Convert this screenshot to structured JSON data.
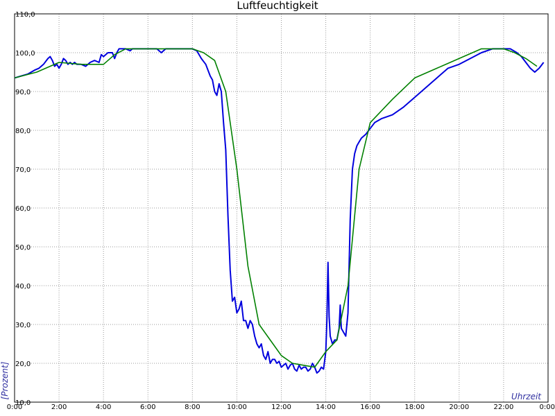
{
  "chart_data": {
    "type": "line",
    "title": "Luftfeuchtigkeit",
    "xlabel": "Uhrzeit",
    "ylabel": "[Prozent]",
    "x_unit": "hours",
    "xlim": [
      0,
      24
    ],
    "ylim": [
      10,
      110
    ],
    "x_ticks": [
      {
        "value": 0,
        "label": "0:00"
      },
      {
        "value": 2,
        "label": "2:00"
      },
      {
        "value": 4,
        "label": "4:00"
      },
      {
        "value": 6,
        "label": "6:00"
      },
      {
        "value": 8,
        "label": "8:00"
      },
      {
        "value": 10,
        "label": "10:00"
      },
      {
        "value": 12,
        "label": "12:00"
      },
      {
        "value": 14,
        "label": "14:00"
      },
      {
        "value": 16,
        "label": "16:00"
      },
      {
        "value": 18,
        "label": "18:00"
      },
      {
        "value": 20,
        "label": "20:00"
      },
      {
        "value": 22,
        "label": "22:00"
      },
      {
        "value": 24,
        "label": "0:00"
      }
    ],
    "y_ticks": [
      {
        "value": 10,
        "label": "10,0"
      },
      {
        "value": 20,
        "label": "20,0"
      },
      {
        "value": 30,
        "label": "30,0"
      },
      {
        "value": 40,
        "label": "40,0"
      },
      {
        "value": 50,
        "label": "50,0"
      },
      {
        "value": 60,
        "label": "60,0"
      },
      {
        "value": 70,
        "label": "70,0"
      },
      {
        "value": 80,
        "label": "80,0"
      },
      {
        "value": 90,
        "label": "90,0"
      },
      {
        "value": 100,
        "label": "100,0"
      },
      {
        "value": 110,
        "label": "110,0"
      }
    ],
    "grid": true,
    "colors": {
      "series_1": "#0000dd",
      "series_2": "#008000",
      "grid": "#999999"
    },
    "series": [
      {
        "x": [
          0.0,
          0.3,
          0.6,
          0.9,
          1.1,
          1.3,
          1.5,
          1.6,
          1.7,
          1.8,
          1.9,
          2.0,
          2.1,
          2.2,
          2.3,
          2.4,
          2.5,
          2.6,
          2.7,
          2.8,
          3.0,
          3.2,
          3.4,
          3.6,
          3.8,
          3.9,
          4.0,
          4.2,
          4.4,
          4.5,
          4.6,
          4.7,
          4.8,
          5.0,
          5.2,
          5.3,
          5.4,
          5.6,
          5.8,
          6.0,
          6.2,
          6.4,
          6.6,
          6.8,
          7.0,
          7.5,
          8.0,
          8.2,
          8.4,
          8.6,
          8.8,
          8.9,
          9.0,
          9.1,
          9.2,
          9.3,
          9.4,
          9.5,
          9.6,
          9.7,
          9.8,
          9.9,
          10.0,
          10.1,
          10.2,
          10.3,
          10.4,
          10.5,
          10.6,
          10.7,
          10.8,
          10.9,
          11.0,
          11.1,
          11.2,
          11.3,
          11.4,
          11.5,
          11.6,
          11.7,
          11.8,
          11.9,
          12.0,
          12.1,
          12.2,
          12.3,
          12.4,
          12.5,
          12.6,
          12.7,
          12.8,
          12.9,
          13.0,
          13.1,
          13.2,
          13.3,
          13.4,
          13.5,
          13.6,
          13.7,
          13.8,
          13.9,
          14.0,
          14.05,
          14.1,
          14.15,
          14.2,
          14.3,
          14.4,
          14.5,
          14.6,
          14.65,
          14.7,
          14.8,
          14.9,
          15.0,
          15.1,
          15.2,
          15.3,
          15.4,
          15.5,
          15.6,
          15.8,
          16.0,
          16.2,
          16.5,
          17.0,
          17.5,
          18.0,
          18.5,
          19.0,
          19.5,
          20.0,
          20.5,
          21.0,
          21.5,
          22.0,
          22.3,
          22.6,
          22.8,
          23.0,
          23.2,
          23.4,
          23.6,
          23.8
        ],
        "values": [
          93.5,
          94.0,
          94.5,
          95.5,
          96.0,
          97.0,
          98.5,
          99.0,
          98.0,
          96.5,
          97.0,
          96.0,
          97.0,
          98.5,
          98.0,
          97.0,
          97.5,
          97.0,
          97.5,
          97.0,
          97.0,
          96.5,
          97.5,
          98.0,
          97.5,
          99.5,
          99.0,
          100.0,
          100.0,
          98.5,
          100.0,
          101.0,
          101.0,
          101.0,
          100.5,
          101.0,
          101.0,
          101.0,
          101.0,
          101.0,
          101.0,
          101.0,
          100.0,
          101.0,
          101.0,
          101.0,
          101.0,
          100.5,
          98.5,
          97.0,
          94.0,
          93.0,
          90.0,
          89.0,
          92.0,
          90.0,
          82.0,
          75.0,
          58.0,
          44.0,
          36.0,
          37.0,
          33.0,
          34.0,
          36.0,
          31.0,
          31.0,
          29.0,
          31.0,
          30.0,
          27.0,
          25.0,
          24.0,
          25.0,
          22.0,
          21.0,
          23.0,
          20.0,
          21.0,
          21.0,
          20.0,
          20.5,
          19.0,
          19.5,
          20.0,
          18.5,
          19.5,
          20.0,
          18.5,
          18.0,
          19.5,
          18.5,
          19.0,
          19.0,
          18.0,
          18.5,
          20.0,
          19.0,
          17.5,
          18.0,
          19.0,
          18.5,
          23.0,
          31.0,
          46.0,
          32.0,
          27.0,
          25.0,
          26.0,
          26.0,
          29.0,
          35.0,
          29.0,
          28.0,
          27.0,
          33.0,
          57.0,
          70.0,
          74.0,
          76.0,
          77.0,
          78.0,
          79.0,
          80.5,
          82.0,
          83.0,
          84.0,
          86.0,
          88.5,
          91.0,
          93.5,
          96.0,
          97.0,
          98.5,
          100.0,
          101.0,
          101.0,
          101.0,
          100.0,
          99.0,
          97.5,
          96.0,
          95.0,
          96.0,
          97.5
        ]
      },
      {
        "x": [
          0.0,
          1.0,
          2.0,
          3.0,
          4.0,
          4.5,
          5.0,
          5.5,
          6.0,
          8.0,
          8.5,
          9.0,
          9.5,
          10.0,
          10.5,
          11.0,
          11.5,
          12.0,
          12.5,
          13.0,
          13.5,
          14.0,
          14.5,
          15.0,
          15.5,
          16.0,
          17.0,
          18.0,
          19.0,
          20.0,
          21.0,
          22.0,
          22.5,
          23.0,
          23.5
        ],
        "values": [
          93.5,
          95.0,
          97.5,
          97.0,
          97.0,
          99.5,
          101.0,
          101.0,
          101.0,
          101.0,
          100.0,
          98.0,
          90.0,
          70.0,
          45.0,
          30.0,
          26.0,
          22.0,
          20.0,
          19.5,
          19.0,
          23.0,
          26.0,
          40.0,
          70.0,
          82.0,
          88.0,
          93.5,
          96.0,
          98.5,
          101.0,
          101.0,
          100.0,
          98.5,
          96.5
        ]
      }
    ]
  }
}
